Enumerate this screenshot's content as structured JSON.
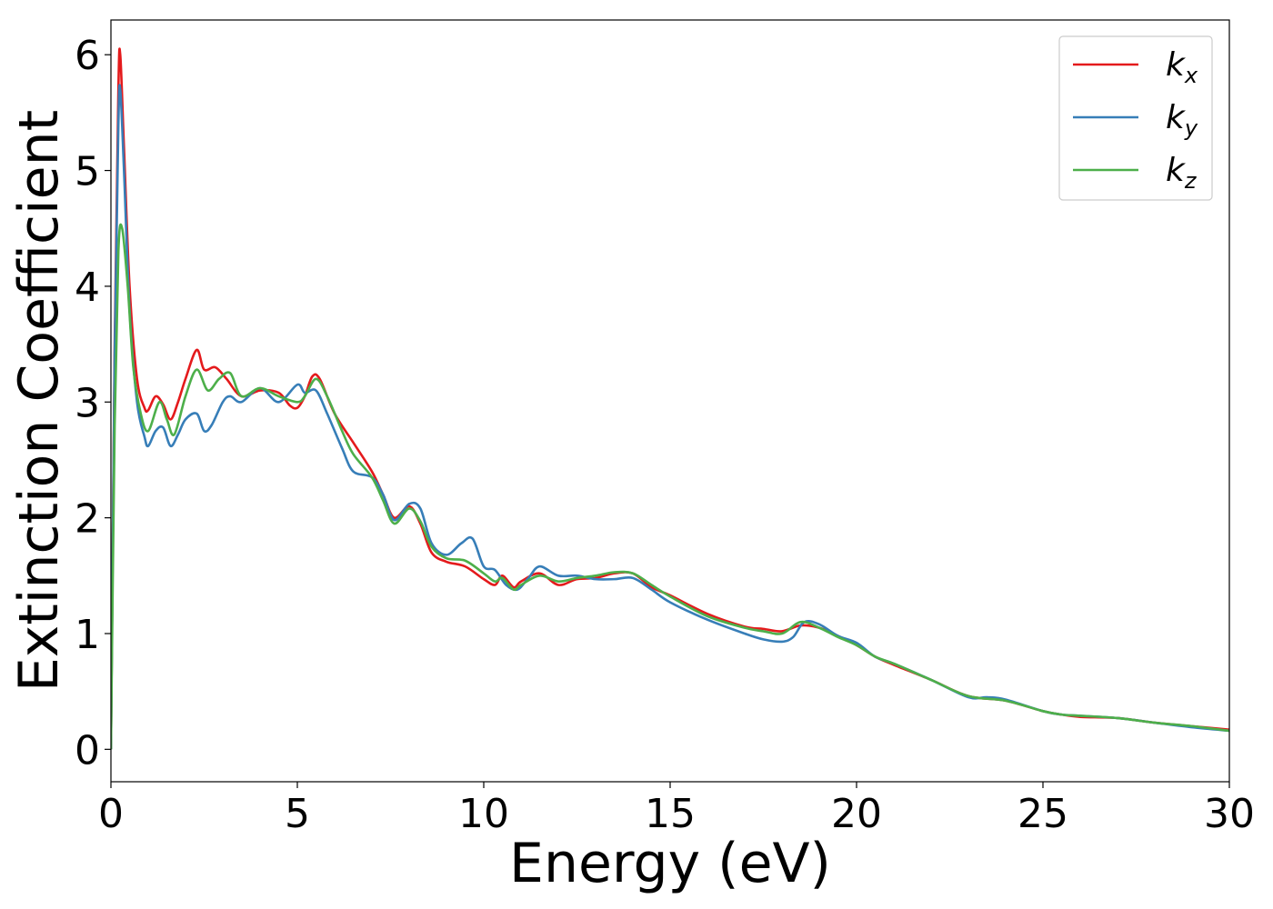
{
  "chart_data": {
    "type": "line",
    "xlabel": "Energy (eV)",
    "ylabel": "Extinction Coefficient",
    "xlim": [
      0,
      30
    ],
    "ylim": [
      -0.28,
      6.3
    ],
    "xticks": [
      0,
      5,
      10,
      15,
      20,
      25,
      30
    ],
    "yticks": [
      0,
      1,
      2,
      3,
      4,
      5,
      6
    ],
    "grid": false,
    "legend_position": "top-right",
    "series": [
      {
        "name": "k",
        "subscript": "x",
        "color": "#e41a1c",
        "x": [
          0,
          0.1,
          0.2,
          0.25,
          0.35,
          0.5,
          0.7,
          0.9,
          1.0,
          1.2,
          1.4,
          1.6,
          1.8,
          2.0,
          2.3,
          2.5,
          2.8,
          3.1,
          3.5,
          4.0,
          4.5,
          4.8,
          5.0,
          5.2,
          5.4,
          5.6,
          6.0,
          6.5,
          7.0,
          7.3,
          7.6,
          8.0,
          8.3,
          8.6,
          9.0,
          9.5,
          10.0,
          10.3,
          10.5,
          10.8,
          11.0,
          11.5,
          12.0,
          12.5,
          13.0,
          13.5,
          14.0,
          14.5,
          15.0,
          16.0,
          17.0,
          17.5,
          18.0,
          18.5,
          19.0,
          19.5,
          20.0,
          20.5,
          21.0,
          22.0,
          23.0,
          24.0,
          25.0,
          25.5,
          26.0,
          27.0,
          28.0,
          29.0,
          30.0
        ],
        "values": [
          0.0,
          3.5,
          5.7,
          6.0,
          5.2,
          4.0,
          3.2,
          2.95,
          2.93,
          3.05,
          2.98,
          2.85,
          3.0,
          3.2,
          3.45,
          3.28,
          3.3,
          3.2,
          3.05,
          3.1,
          3.08,
          2.97,
          2.95,
          3.05,
          3.22,
          3.2,
          2.9,
          2.65,
          2.4,
          2.2,
          2.0,
          2.1,
          1.95,
          1.7,
          1.62,
          1.58,
          1.47,
          1.42,
          1.5,
          1.4,
          1.45,
          1.52,
          1.42,
          1.47,
          1.48,
          1.52,
          1.52,
          1.4,
          1.33,
          1.17,
          1.06,
          1.04,
          1.02,
          1.07,
          1.05,
          0.98,
          0.9,
          0.8,
          0.73,
          0.6,
          0.46,
          0.42,
          0.33,
          0.3,
          0.28,
          0.27,
          0.23,
          0.2,
          0.17
        ]
      },
      {
        "name": "k",
        "subscript": "y",
        "color": "#377eb8",
        "x": [
          0,
          0.1,
          0.2,
          0.25,
          0.35,
          0.5,
          0.7,
          0.9,
          1.0,
          1.2,
          1.4,
          1.6,
          1.8,
          2.0,
          2.3,
          2.5,
          2.7,
          3.0,
          3.2,
          3.5,
          4.0,
          4.5,
          5.0,
          5.2,
          5.5,
          5.8,
          6.2,
          6.5,
          7.0,
          7.3,
          7.6,
          8.0,
          8.3,
          8.6,
          9.0,
          9.4,
          9.7,
          10.0,
          10.3,
          10.6,
          10.9,
          11.2,
          11.5,
          12.0,
          12.5,
          13.0,
          13.5,
          14.0,
          14.5,
          15.0,
          16.0,
          17.0,
          17.5,
          18.0,
          18.3,
          18.6,
          19.0,
          19.5,
          20.0,
          20.5,
          21.0,
          22.0,
          23.0,
          23.5,
          24.0,
          25.0,
          25.5,
          26.0,
          27.0,
          28.0,
          29.0,
          30.0
        ],
        "values": [
          0.0,
          3.4,
          5.4,
          5.7,
          5.0,
          3.8,
          3.0,
          2.7,
          2.62,
          2.75,
          2.78,
          2.62,
          2.72,
          2.85,
          2.9,
          2.75,
          2.8,
          3.0,
          3.05,
          3.0,
          3.12,
          3.0,
          3.15,
          3.08,
          3.1,
          2.9,
          2.6,
          2.4,
          2.35,
          2.2,
          1.98,
          2.12,
          2.08,
          1.78,
          1.68,
          1.78,
          1.82,
          1.58,
          1.55,
          1.42,
          1.38,
          1.48,
          1.58,
          1.5,
          1.5,
          1.47,
          1.47,
          1.48,
          1.38,
          1.27,
          1.12,
          1.0,
          0.95,
          0.93,
          0.97,
          1.1,
          1.08,
          0.98,
          0.92,
          0.8,
          0.74,
          0.6,
          0.45,
          0.45,
          0.43,
          0.33,
          0.3,
          0.29,
          0.27,
          0.23,
          0.19,
          0.16
        ]
      },
      {
        "name": "k",
        "subscript": "z",
        "color": "#4daf4a",
        "x": [
          0,
          0.1,
          0.2,
          0.3,
          0.45,
          0.6,
          0.8,
          1.0,
          1.3,
          1.5,
          1.7,
          2.0,
          2.3,
          2.6,
          2.9,
          3.2,
          3.5,
          4.0,
          4.5,
          5.0,
          5.2,
          5.5,
          5.8,
          6.2,
          6.5,
          7.0,
          7.3,
          7.6,
          8.0,
          8.3,
          8.6,
          9.0,
          9.5,
          10.0,
          10.3,
          10.5,
          10.8,
          11.0,
          11.5,
          12.0,
          12.5,
          13.0,
          13.5,
          14.0,
          14.5,
          15.0,
          16.0,
          17.0,
          17.5,
          18.0,
          18.5,
          19.0,
          19.5,
          20.0,
          20.5,
          21.0,
          22.0,
          23.0,
          24.0,
          25.0,
          25.5,
          26.0,
          27.0,
          28.0,
          29.0,
          30.0
        ],
        "values": [
          0.0,
          2.8,
          4.3,
          4.5,
          4.0,
          3.3,
          2.9,
          2.75,
          3.0,
          2.85,
          2.72,
          3.05,
          3.28,
          3.1,
          3.2,
          3.25,
          3.05,
          3.12,
          3.05,
          3.0,
          3.05,
          3.2,
          3.05,
          2.75,
          2.55,
          2.35,
          2.15,
          1.95,
          2.08,
          1.97,
          1.75,
          1.65,
          1.63,
          1.52,
          1.45,
          1.48,
          1.38,
          1.42,
          1.5,
          1.45,
          1.48,
          1.5,
          1.53,
          1.52,
          1.42,
          1.32,
          1.15,
          1.05,
          1.02,
          1.0,
          1.1,
          1.05,
          0.97,
          0.9,
          0.8,
          0.74,
          0.6,
          0.46,
          0.42,
          0.33,
          0.3,
          0.29,
          0.27,
          0.23,
          0.2,
          0.16
        ]
      }
    ]
  }
}
